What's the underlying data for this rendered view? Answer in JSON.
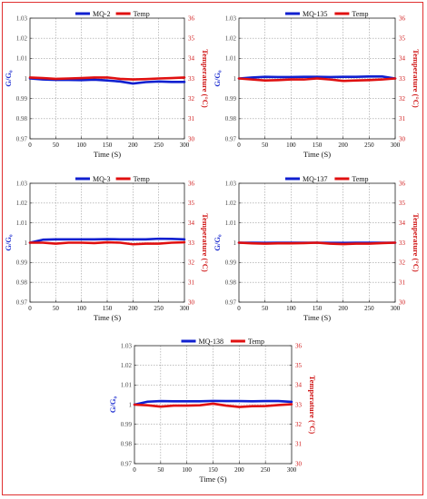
{
  "chart_data": [
    {
      "type": "line",
      "legend": "top",
      "xlabel": "Time (S)",
      "ylabel": "G/G₀",
      "y2label": "Temperature (°C)",
      "xlim": [
        0,
        300
      ],
      "ylim": [
        0.97,
        1.03
      ],
      "y2lim": [
        30,
        36
      ],
      "x_ticks": [
        "0",
        "50",
        "100",
        "150",
        "200",
        "250",
        "300"
      ],
      "y_ticks": [
        "0.97",
        "0.98",
        "0.99",
        "1",
        "1.01",
        "1.02",
        "1.03"
      ],
      "y2_ticks": [
        "30",
        "31",
        "32",
        "33",
        "34",
        "35",
        "36"
      ],
      "grid": true,
      "series": [
        {
          "name": "MQ-2",
          "axis": "left",
          "color": "#1020d0",
          "x": [
            0,
            25,
            50,
            75,
            100,
            125,
            150,
            175,
            200,
            225,
            250,
            275,
            300
          ],
          "y": [
            1.0,
            0.9995,
            0.9993,
            0.9993,
            0.9992,
            0.9994,
            0.999,
            0.9985,
            0.9975,
            0.9982,
            0.9985,
            0.9983,
            0.9983
          ]
        },
        {
          "name": "Temp",
          "axis": "right",
          "color": "#e01010",
          "x": [
            0,
            25,
            50,
            75,
            100,
            125,
            150,
            175,
            200,
            225,
            250,
            275,
            300
          ],
          "y": [
            33.05,
            33.02,
            32.98,
            33.0,
            33.02,
            33.05,
            33.05,
            32.98,
            32.95,
            32.97,
            33.0,
            33.02,
            33.05
          ]
        }
      ]
    },
    {
      "type": "line",
      "legend": "top",
      "xlabel": "Time (S)",
      "ylabel": "G/G₀",
      "y2label": "Temperature (°C)",
      "xlim": [
        0,
        300
      ],
      "ylim": [
        0.97,
        1.03
      ],
      "y2lim": [
        30,
        36
      ],
      "x_ticks": [
        "0",
        "50",
        "100",
        "150",
        "200",
        "250",
        "300"
      ],
      "y_ticks": [
        "0.97",
        "0.98",
        "0.99",
        "1",
        "1.01",
        "1.02",
        "1.03"
      ],
      "y2_ticks": [
        "30",
        "31",
        "32",
        "33",
        "34",
        "35",
        "36"
      ],
      "grid": true,
      "series": [
        {
          "name": "MQ-135",
          "axis": "left",
          "color": "#1020d0",
          "x": [
            0,
            25,
            50,
            75,
            100,
            125,
            150,
            175,
            200,
            225,
            250,
            275,
            300
          ],
          "y": [
            1.0,
            1.0005,
            1.0008,
            1.0007,
            1.0007,
            1.0008,
            1.0008,
            1.0007,
            1.0008,
            1.0008,
            1.001,
            1.001,
            1.0
          ]
        },
        {
          "name": "Temp",
          "axis": "right",
          "color": "#e01010",
          "x": [
            0,
            25,
            50,
            75,
            100,
            125,
            150,
            175,
            200,
            225,
            250,
            275,
            300
          ],
          "y": [
            33.0,
            32.95,
            32.9,
            32.92,
            32.95,
            32.95,
            33.0,
            32.95,
            32.88,
            32.9,
            32.92,
            32.95,
            33.0
          ]
        }
      ]
    },
    {
      "type": "line",
      "legend": "top",
      "xlabel": "Time (S)",
      "ylabel": "G/G₀",
      "y2label": "Temperature (°C)",
      "xlim": [
        0,
        300
      ],
      "ylim": [
        0.97,
        1.03
      ],
      "y2lim": [
        30,
        36
      ],
      "x_ticks": [
        "0",
        "50",
        "100",
        "150",
        "200",
        "250",
        "300"
      ],
      "y_ticks": [
        "0.97",
        "0.98",
        "0.99",
        "1",
        "1.01",
        "1.02",
        "1.03"
      ],
      "y2_ticks": [
        "30",
        "31",
        "32",
        "33",
        "34",
        "35",
        "36"
      ],
      "grid": true,
      "series": [
        {
          "name": "MQ-3",
          "axis": "left",
          "color": "#1020d0",
          "x": [
            0,
            25,
            50,
            75,
            100,
            125,
            150,
            175,
            200,
            225,
            250,
            275,
            300
          ],
          "y": [
            1.0,
            1.0015,
            1.0017,
            1.0017,
            1.0017,
            1.0017,
            1.0018,
            1.0017,
            1.0017,
            1.0017,
            1.002,
            1.0019,
            1.0017
          ]
        },
        {
          "name": "Temp",
          "axis": "right",
          "color": "#e01010",
          "x": [
            0,
            25,
            50,
            75,
            100,
            125,
            150,
            175,
            200,
            225,
            250,
            275,
            300
          ],
          "y": [
            33.0,
            33.0,
            32.95,
            33.0,
            33.0,
            32.98,
            33.02,
            33.0,
            32.92,
            32.95,
            32.95,
            33.0,
            33.02
          ]
        }
      ]
    },
    {
      "type": "line",
      "legend": "top",
      "xlabel": "Time (S)",
      "ylabel": "G/G₀",
      "y2label": "Temperature (°C)",
      "xlim": [
        0,
        300
      ],
      "ylim": [
        0.97,
        1.03
      ],
      "y2lim": [
        30,
        36
      ],
      "x_ticks": [
        "0",
        "50",
        "100",
        "150",
        "200",
        "250",
        "300"
      ],
      "y_ticks": [
        "0.97",
        "0.98",
        "0.99",
        "1",
        "1.01",
        "1.02",
        "1.03"
      ],
      "y2_ticks": [
        "30",
        "31",
        "32",
        "33",
        "34",
        "35",
        "36"
      ],
      "grid": true,
      "series": [
        {
          "name": "MQ-137",
          "axis": "left",
          "color": "#1020d0",
          "x": [
            0,
            25,
            50,
            75,
            100,
            125,
            150,
            175,
            200,
            225,
            250,
            275,
            300
          ],
          "y": [
            1.0,
            1.0,
            0.9999,
            1.0,
            1.0,
            1.0,
            1.0,
            0.9999,
            0.9999,
            1.0,
            1.0,
            1.0,
            1.0
          ]
        },
        {
          "name": "Temp",
          "axis": "right",
          "color": "#e01010",
          "x": [
            0,
            25,
            50,
            75,
            100,
            125,
            150,
            175,
            200,
            225,
            250,
            275,
            300
          ],
          "y": [
            33.0,
            32.97,
            32.95,
            32.97,
            32.97,
            32.98,
            33.0,
            32.95,
            32.93,
            32.95,
            32.95,
            32.98,
            33.0
          ]
        }
      ]
    },
    {
      "type": "line",
      "legend": "top",
      "xlabel": "Time (S)",
      "ylabel": "G/G₀",
      "y2label": "Temperature (°C)",
      "xlim": [
        0,
        300
      ],
      "ylim": [
        0.97,
        1.03
      ],
      "y2lim": [
        30,
        36
      ],
      "x_ticks": [
        "0",
        "50",
        "100",
        "150",
        "200",
        "250",
        "300"
      ],
      "y_ticks": [
        "0.97",
        "0.98",
        "0.99",
        "1",
        "1.01",
        "1.02",
        "1.03"
      ],
      "y2_ticks": [
        "30",
        "31",
        "32",
        "33",
        "34",
        "35",
        "36"
      ],
      "grid": true,
      "series": [
        {
          "name": "MQ-138",
          "axis": "left",
          "color": "#1020d0",
          "x": [
            0,
            25,
            50,
            75,
            100,
            125,
            150,
            175,
            200,
            225,
            250,
            275,
            300
          ],
          "y": [
            1.0,
            1.0015,
            1.0018,
            1.0017,
            1.0017,
            1.0017,
            1.0019,
            1.0018,
            1.0018,
            1.0017,
            1.0018,
            1.0018,
            1.0014
          ]
        },
        {
          "name": "Temp",
          "axis": "right",
          "color": "#e01010",
          "x": [
            0,
            25,
            50,
            75,
            100,
            125,
            150,
            175,
            200,
            225,
            250,
            275,
            300
          ],
          "y": [
            33.0,
            32.97,
            32.9,
            32.95,
            32.95,
            32.97,
            33.05,
            32.95,
            32.88,
            32.92,
            32.93,
            32.98,
            33.02
          ]
        }
      ]
    }
  ]
}
